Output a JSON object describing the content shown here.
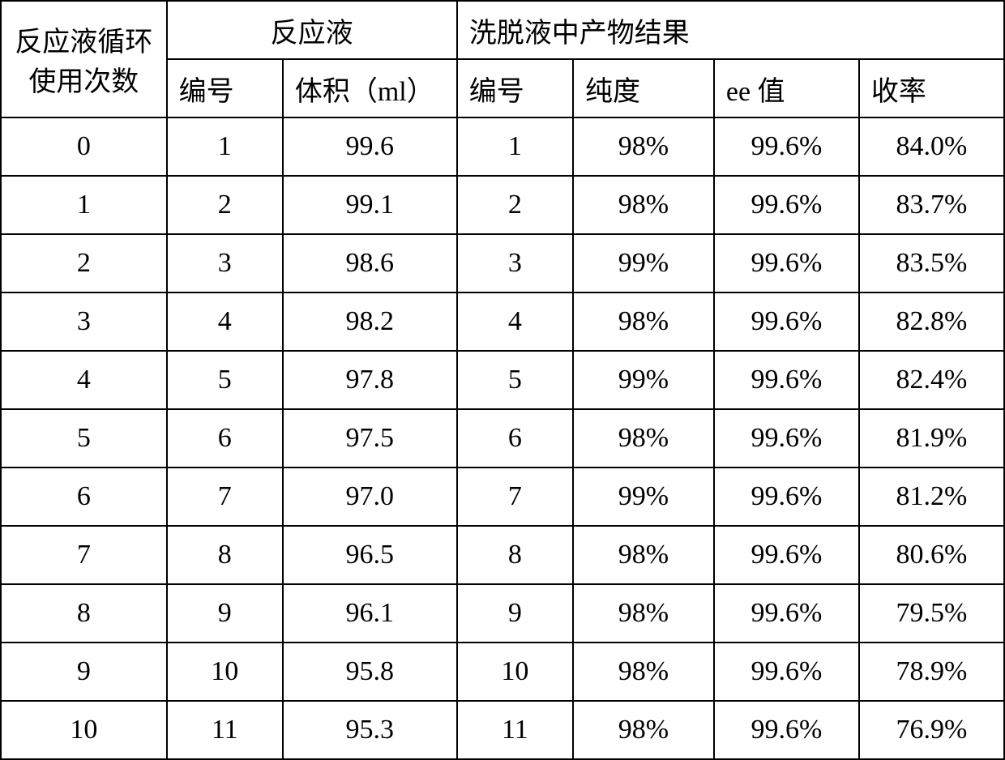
{
  "table": {
    "headers": {
      "col1_line1": "反应液循环",
      "col1_line2": "使用次数",
      "col_group1": "反应液",
      "col_group2": "洗脱液中产物结果",
      "col2": "编号",
      "col3": "体积（ml）",
      "col4": "编号",
      "col5": "纯度",
      "col6": "ee 值",
      "col7": "收率"
    },
    "rows": [
      {
        "cycle": "0",
        "r_no": "1",
        "volume": "99.6",
        "e_no": "1",
        "purity": "98%",
        "ee": "99.6%",
        "yield": "84.0%"
      },
      {
        "cycle": "1",
        "r_no": "2",
        "volume": "99.1",
        "e_no": "2",
        "purity": "98%",
        "ee": "99.6%",
        "yield": "83.7%"
      },
      {
        "cycle": "2",
        "r_no": "3",
        "volume": "98.6",
        "e_no": "3",
        "purity": "99%",
        "ee": "99.6%",
        "yield": "83.5%"
      },
      {
        "cycle": "3",
        "r_no": "4",
        "volume": "98.2",
        "e_no": "4",
        "purity": "98%",
        "ee": "99.6%",
        "yield": "82.8%"
      },
      {
        "cycle": "4",
        "r_no": "5",
        "volume": "97.8",
        "e_no": "5",
        "purity": "99%",
        "ee": "99.6%",
        "yield": "82.4%"
      },
      {
        "cycle": "5",
        "r_no": "6",
        "volume": "97.5",
        "e_no": "6",
        "purity": "98%",
        "ee": "99.6%",
        "yield": "81.9%"
      },
      {
        "cycle": "6",
        "r_no": "7",
        "volume": "97.0",
        "e_no": "7",
        "purity": "99%",
        "ee": "99.6%",
        "yield": "81.2%"
      },
      {
        "cycle": "7",
        "r_no": "8",
        "volume": "96.5",
        "e_no": "8",
        "purity": "98%",
        "ee": "99.6%",
        "yield": "80.6%"
      },
      {
        "cycle": "8",
        "r_no": "9",
        "volume": "96.1",
        "e_no": "9",
        "purity": "98%",
        "ee": "99.6%",
        "yield": "79.5%"
      },
      {
        "cycle": "9",
        "r_no": "10",
        "volume": "95.8",
        "e_no": "10",
        "purity": "98%",
        "ee": "99.6%",
        "yield": "78.9%"
      },
      {
        "cycle": "10",
        "r_no": "11",
        "volume": "95.3",
        "e_no": "11",
        "purity": "98%",
        "ee": "99.6%",
        "yield": "76.9%"
      }
    ],
    "colors": {
      "border": "#000000",
      "background": "#ffffff",
      "text": "#000000"
    },
    "font_size": 34,
    "border_width": 2
  }
}
